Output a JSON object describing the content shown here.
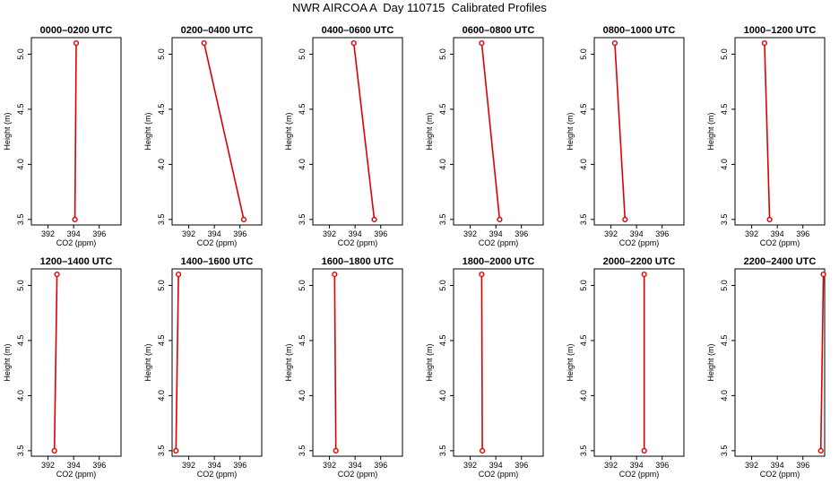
{
  "title": "NWR AIRCOA A  Day 110715  Calibrated Profiles",
  "colors": {
    "line": "#dd0000",
    "point": "#dd0000",
    "frame": "#000000"
  },
  "chart_data": [
    {
      "type": "line",
      "title": "0000–0200 UTC",
      "xlabel": "CO2 (ppm)",
      "ylabel": "Height (m)",
      "xlim": [
        390.7,
        397.7
      ],
      "ylim": [
        3.45,
        5.15
      ],
      "xticks": [
        "392",
        "394",
        "396"
      ],
      "yticks": [
        "3.5",
        "4.0",
        "4.5",
        "5.0"
      ],
      "x": [
        394.2,
        394.1
      ],
      "y": [
        5.1,
        3.5
      ]
    },
    {
      "type": "line",
      "title": "0200–0400 UTC",
      "xlabel": "CO2 (ppm)",
      "ylabel": "Height (m)",
      "xlim": [
        390.7,
        397.7
      ],
      "ylim": [
        3.45,
        5.15
      ],
      "xticks": [
        "392",
        "394",
        "396"
      ],
      "yticks": [
        "3.5",
        "4.0",
        "4.5",
        "5.0"
      ],
      "x": [
        393.2,
        396.3
      ],
      "y": [
        5.1,
        3.5
      ]
    },
    {
      "type": "line",
      "title": "0400–0600 UTC",
      "xlabel": "CO2 (ppm)",
      "ylabel": "Height (m)",
      "xlim": [
        390.7,
        397.7
      ],
      "ylim": [
        3.45,
        5.15
      ],
      "xticks": [
        "392",
        "394",
        "396"
      ],
      "yticks": [
        "3.5",
        "4.0",
        "4.5",
        "5.0"
      ],
      "x": [
        393.9,
        395.5
      ],
      "y": [
        5.1,
        3.5
      ]
    },
    {
      "type": "line",
      "title": "0600–0800 UTC",
      "xlabel": "CO2 (ppm)",
      "ylabel": "Height (m)",
      "xlim": [
        390.7,
        397.7
      ],
      "ylim": [
        3.45,
        5.15
      ],
      "xticks": [
        "392",
        "394",
        "396"
      ],
      "yticks": [
        "3.5",
        "4.0",
        "4.5",
        "5.0"
      ],
      "x": [
        392.9,
        394.3
      ],
      "y": [
        5.1,
        3.5
      ]
    },
    {
      "type": "line",
      "title": "0800–1000 UTC",
      "xlabel": "CO2 (ppm)",
      "ylabel": "Height (m)",
      "xlim": [
        390.7,
        397.7
      ],
      "ylim": [
        3.45,
        5.15
      ],
      "xticks": [
        "392",
        "394",
        "396"
      ],
      "yticks": [
        "3.5",
        "4.0",
        "4.5",
        "5.0"
      ],
      "x": [
        392.3,
        393.1
      ],
      "y": [
        5.1,
        3.5
      ]
    },
    {
      "type": "line",
      "title": "1000–1200 UTC",
      "xlabel": "CO2 (ppm)",
      "ylabel": "Height (m)",
      "xlim": [
        390.7,
        397.7
      ],
      "ylim": [
        3.45,
        5.15
      ],
      "xticks": [
        "392",
        "394",
        "396"
      ],
      "yticks": [
        "3.5",
        "4.0",
        "4.5",
        "5.0"
      ],
      "x": [
        393.0,
        393.4
      ],
      "y": [
        5.1,
        3.5
      ]
    },
    {
      "type": "line",
      "title": "1200–1400 UTC",
      "xlabel": "CO2 (ppm)",
      "ylabel": "Height (m)",
      "xlim": [
        390.7,
        397.7
      ],
      "ylim": [
        3.45,
        5.15
      ],
      "xticks": [
        "392",
        "394",
        "396"
      ],
      "yticks": [
        "3.5",
        "4.0",
        "4.5",
        "5.0"
      ],
      "x": [
        392.7,
        392.5
      ],
      "y": [
        5.1,
        3.5
      ]
    },
    {
      "type": "line",
      "title": "1400–1600 UTC",
      "xlabel": "CO2 (ppm)",
      "ylabel": "Height (m)",
      "xlim": [
        390.7,
        397.7
      ],
      "ylim": [
        3.45,
        5.15
      ],
      "xticks": [
        "392",
        "394",
        "396"
      ],
      "yticks": [
        "3.5",
        "4.0",
        "4.5",
        "5.0"
      ],
      "x": [
        391.2,
        391.0
      ],
      "y": [
        5.1,
        3.5
      ]
    },
    {
      "type": "line",
      "title": "1600–1800 UTC",
      "xlabel": "CO2 (ppm)",
      "ylabel": "Height (m)",
      "xlim": [
        390.7,
        397.7
      ],
      "ylim": [
        3.45,
        5.15
      ],
      "xticks": [
        "392",
        "394",
        "396"
      ],
      "yticks": [
        "3.5",
        "4.0",
        "4.5",
        "5.0"
      ],
      "x": [
        392.4,
        392.5
      ],
      "y": [
        5.1,
        3.5
      ]
    },
    {
      "type": "line",
      "title": "1800–2000 UTC",
      "xlabel": "CO2 (ppm)",
      "ylabel": "Height (m)",
      "xlim": [
        390.7,
        397.7
      ],
      "ylim": [
        3.45,
        5.15
      ],
      "xticks": [
        "392",
        "394",
        "396"
      ],
      "yticks": [
        "3.5",
        "4.0",
        "4.5",
        "5.0"
      ],
      "x": [
        392.9,
        392.95
      ],
      "y": [
        5.1,
        3.5
      ]
    },
    {
      "type": "line",
      "title": "2000–2200 UTC",
      "xlabel": "CO2 (ppm)",
      "ylabel": "Height (m)",
      "xlim": [
        390.7,
        397.7
      ],
      "ylim": [
        3.45,
        5.15
      ],
      "xticks": [
        "392",
        "394",
        "396"
      ],
      "yticks": [
        "3.5",
        "4.0",
        "4.5",
        "5.0"
      ],
      "x": [
        394.6,
        394.6
      ],
      "y": [
        5.1,
        3.5
      ]
    },
    {
      "type": "line",
      "title": "2200–2400 UTC",
      "xlabel": "CO2 (ppm)",
      "ylabel": "Height (m)",
      "xlim": [
        390.7,
        397.7
      ],
      "ylim": [
        3.45,
        5.15
      ],
      "xticks": [
        "392",
        "394",
        "396"
      ],
      "yticks": [
        "3.5",
        "4.0",
        "4.5",
        "5.0"
      ],
      "x": [
        397.6,
        397.4
      ],
      "y": [
        5.1,
        3.5
      ]
    }
  ]
}
